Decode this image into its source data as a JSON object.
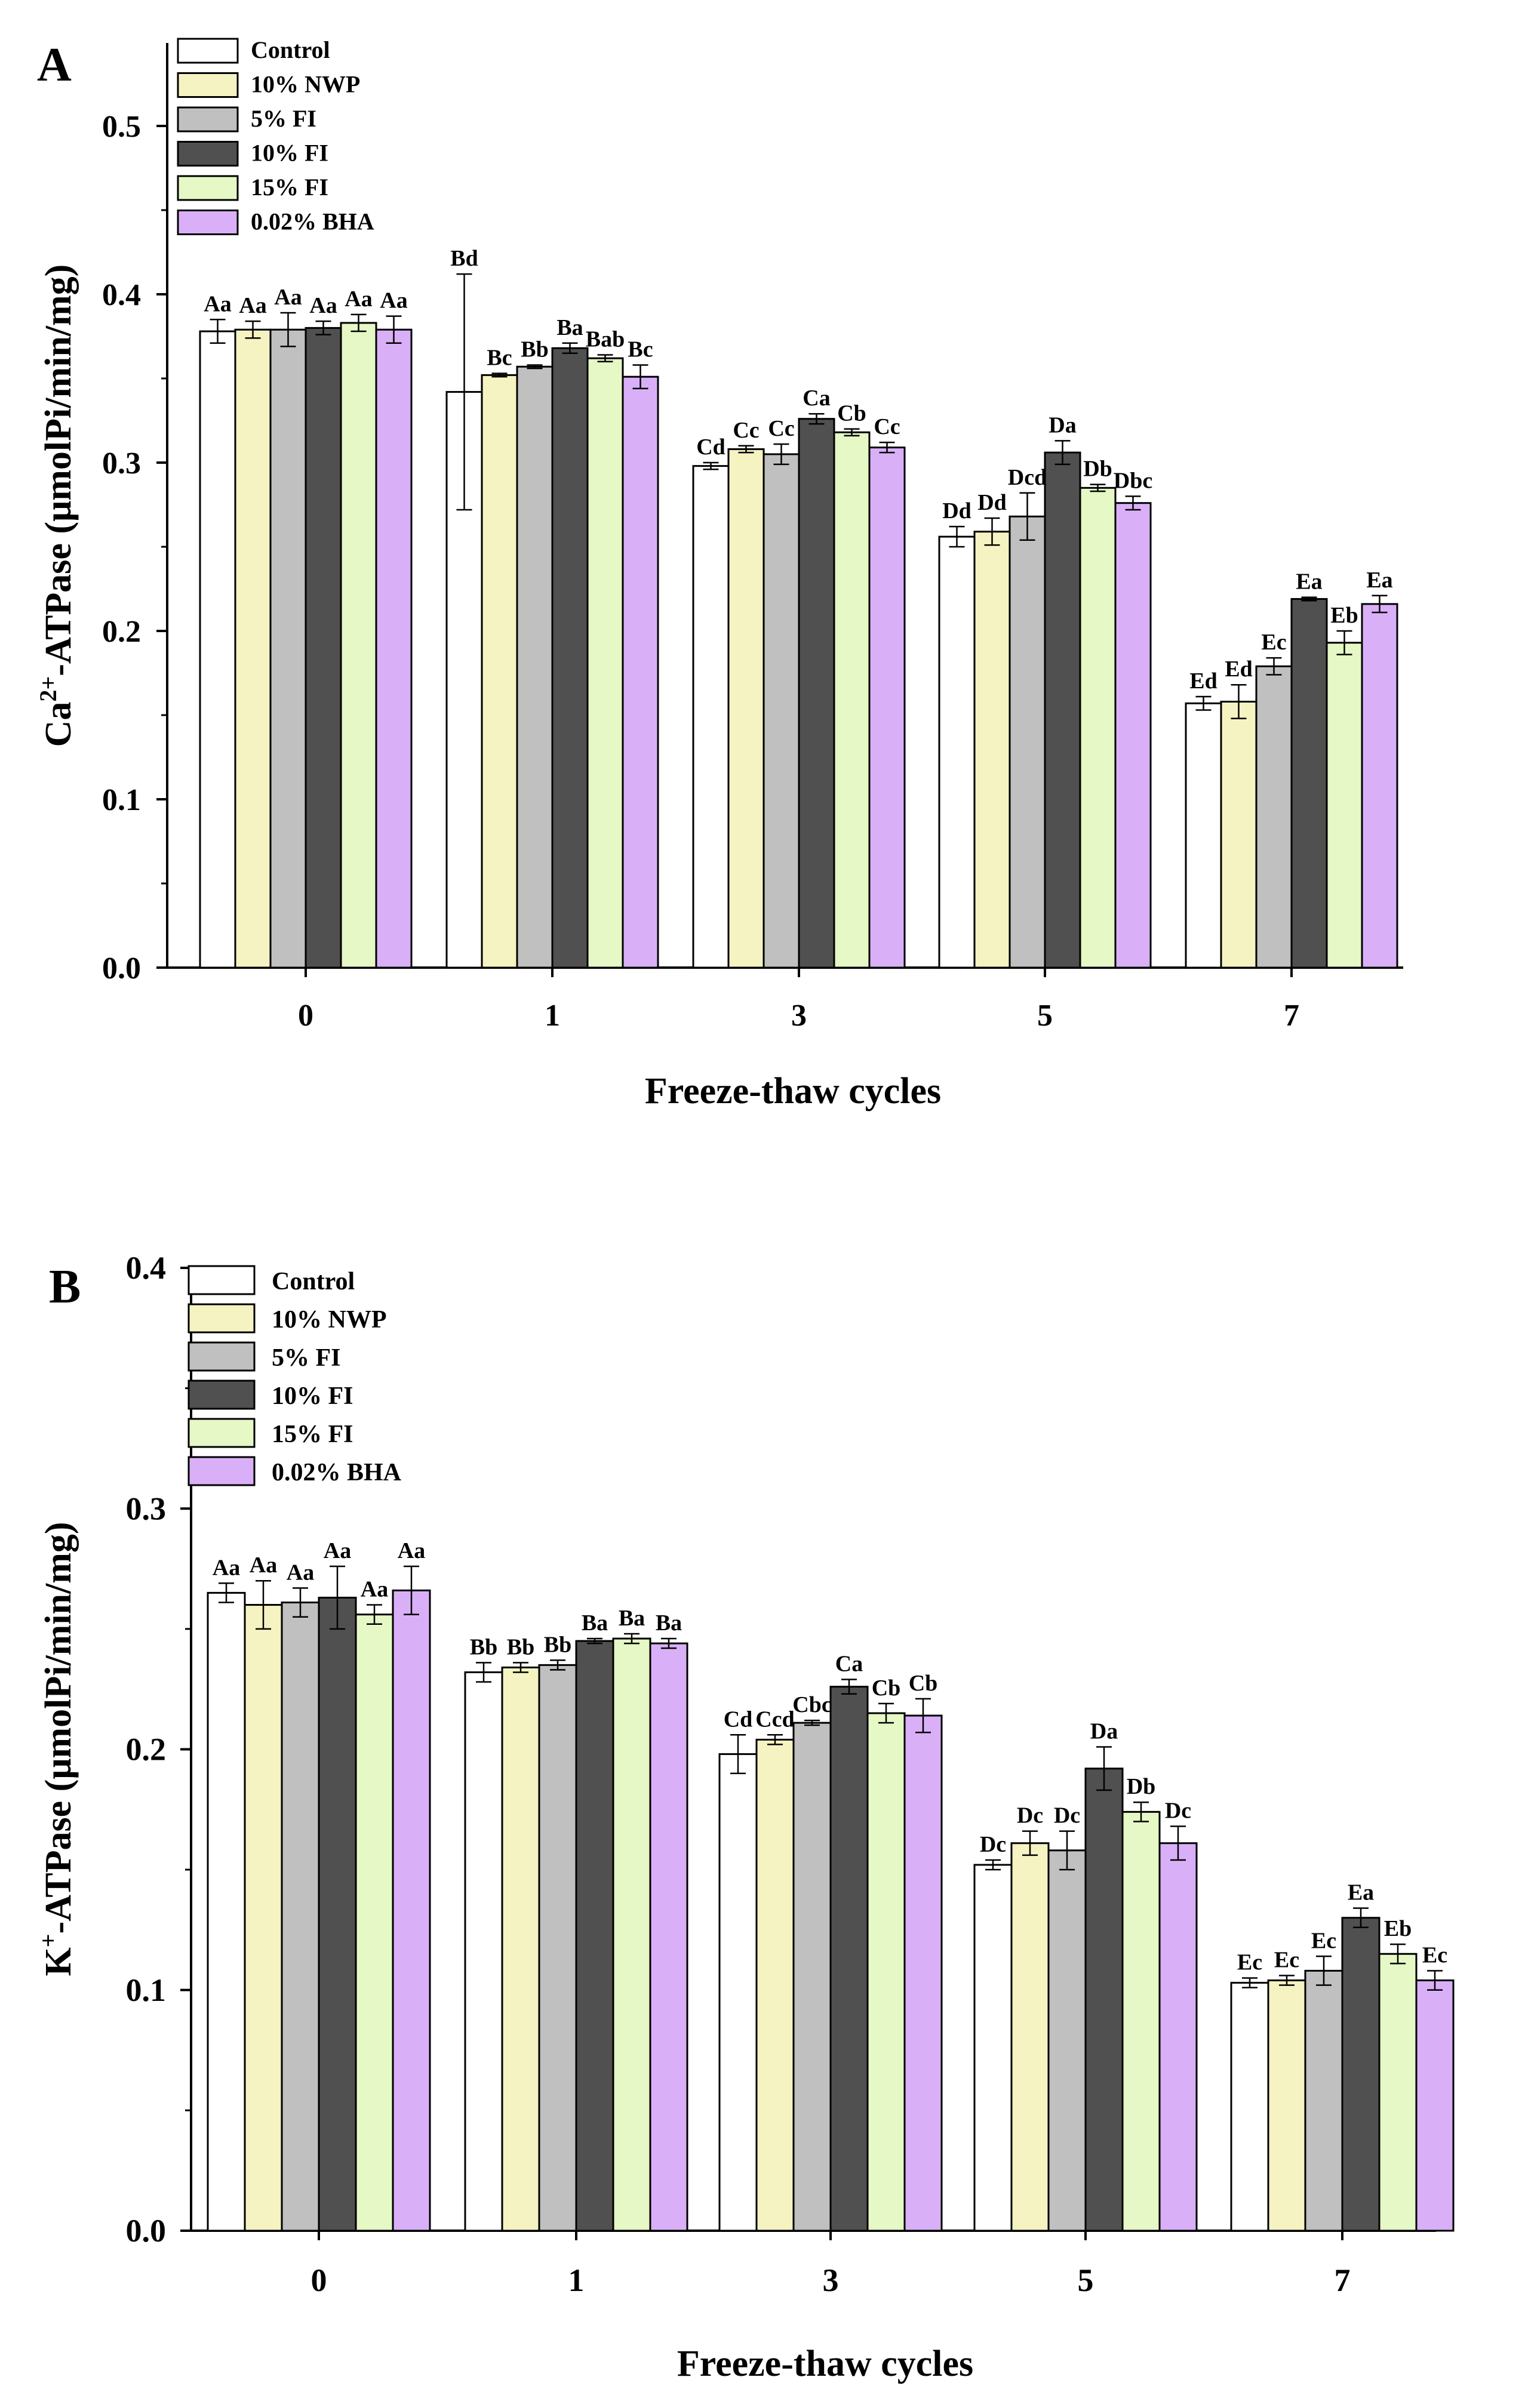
{
  "colors": {
    "Control": "#ffffff",
    "10% NWP": "#f5f3c1",
    "5% FI": "#c0c0c0",
    "10% FI": "#505050",
    "15% FI": "#e5f8c5",
    "0.02% BHA": "#d9b0f7",
    "axis": "#000000"
  },
  "chart_data": [
    {
      "panel_label": "A",
      "type": "bar",
      "title": "",
      "xlabel": "Freeze-thaw cycles",
      "ylabel_main": "Ca",
      "ylabel_sup": "2+",
      "ylabel_rest": "-ATPase (μmolPi/min/mg)",
      "ylim": [
        0,
        0.55
      ],
      "yticks": [
        "0.0",
        "0.1",
        "0.2",
        "0.3",
        "0.4",
        "0.5"
      ],
      "categories": [
        "0",
        "1",
        "3",
        "5",
        "7"
      ],
      "legend_position": "top-left",
      "series": [
        {
          "name": "Control",
          "values": [
            0.378,
            0.342,
            0.298,
            0.256,
            0.157
          ],
          "errors": [
            0.007,
            0.07,
            0.002,
            0.006,
            0.004
          ],
          "labels": [
            "Aa",
            "Bd",
            "Cd",
            "Dd",
            "Ed"
          ]
        },
        {
          "name": "10% NWP",
          "values": [
            0.379,
            0.352,
            0.308,
            0.259,
            0.158
          ],
          "errors": [
            0.005,
            0.001,
            0.002,
            0.008,
            0.01
          ],
          "labels": [
            "Aa",
            "Bc",
            "Cc",
            "Dd",
            "Ed"
          ]
        },
        {
          "name": "5% FI",
          "values": [
            0.379,
            0.357,
            0.305,
            0.268,
            0.179
          ],
          "errors": [
            0.01,
            0.001,
            0.006,
            0.014,
            0.005
          ],
          "labels": [
            "Aa",
            "Bb",
            "Cc",
            "Dcd",
            "Ec"
          ]
        },
        {
          "name": "10% FI",
          "values": [
            0.38,
            0.368,
            0.326,
            0.306,
            0.219
          ],
          "errors": [
            0.004,
            0.003,
            0.003,
            0.007,
            0.001
          ],
          "labels": [
            "Aa",
            "Ba",
            "Ca",
            "Da",
            "Ea"
          ]
        },
        {
          "name": "15% FI",
          "values": [
            0.383,
            0.362,
            0.318,
            0.285,
            0.193
          ],
          "errors": [
            0.005,
            0.002,
            0.002,
            0.002,
            0.007
          ],
          "labels": [
            "Aa",
            "Bab",
            "Cb",
            "Db",
            "Eb"
          ]
        },
        {
          "name": "0.02% BHA",
          "values": [
            0.379,
            0.351,
            0.309,
            0.276,
            0.216
          ],
          "errors": [
            0.008,
            0.007,
            0.003,
            0.004,
            0.005
          ],
          "labels": [
            "Aa",
            "Bc",
            "Cc",
            "Dbc",
            "Ea"
          ]
        }
      ]
    },
    {
      "panel_label": "B",
      "type": "bar",
      "title": "",
      "xlabel": "Freeze-thaw cycles",
      "ylabel_main": "K",
      "ylabel_sup": "+",
      "ylabel_rest": "-ATPase (μmolPi/min/mg)",
      "ylim": [
        0,
        0.4
      ],
      "yticks": [
        "0.0",
        "0.1",
        "0.2",
        "0.3",
        "0.4"
      ],
      "categories": [
        "0",
        "1",
        "3",
        "5",
        "7"
      ],
      "legend_position": "top-left",
      "series": [
        {
          "name": "Control",
          "values": [
            0.265,
            0.232,
            0.198,
            0.152,
            0.103
          ],
          "errors": [
            0.004,
            0.004,
            0.008,
            0.002,
            0.002
          ],
          "labels": [
            "Aa",
            "Bb",
            "Cd",
            "Dc",
            "Ec"
          ]
        },
        {
          "name": "10% NWP",
          "values": [
            0.26,
            0.234,
            0.204,
            0.161,
            0.104
          ],
          "errors": [
            0.01,
            0.002,
            0.002,
            0.005,
            0.002
          ],
          "labels": [
            "Aa",
            "Bb",
            "Ccd",
            "Dc",
            "Ec"
          ]
        },
        {
          "name": "5% FI",
          "values": [
            0.261,
            0.235,
            0.211,
            0.158,
            0.108
          ],
          "errors": [
            0.006,
            0.002,
            0.001,
            0.008,
            0.006
          ],
          "labels": [
            "Aa",
            "Bb",
            "Cbc",
            "Dc",
            "Ec"
          ]
        },
        {
          "name": "10% FI",
          "values": [
            0.263,
            0.245,
            0.226,
            0.192,
            0.13
          ],
          "errors": [
            0.013,
            0.001,
            0.003,
            0.009,
            0.004
          ],
          "labels": [
            "Aa",
            "Ba",
            "Ca",
            "Da",
            "Ea"
          ]
        },
        {
          "name": "15% FI",
          "values": [
            0.256,
            0.246,
            0.215,
            0.174,
            0.115
          ],
          "errors": [
            0.004,
            0.002,
            0.004,
            0.004,
            0.004
          ],
          "labels": [
            "Aa",
            "Ba",
            "Cb",
            "Db",
            "Eb"
          ]
        },
        {
          "name": "0.02% BHA",
          "values": [
            0.266,
            0.244,
            0.214,
            0.161,
            0.104
          ],
          "errors": [
            0.01,
            0.002,
            0.007,
            0.007,
            0.004
          ],
          "labels": [
            "Aa",
            "Ba",
            "Cb",
            "Dc",
            "Ec"
          ]
        }
      ]
    }
  ]
}
